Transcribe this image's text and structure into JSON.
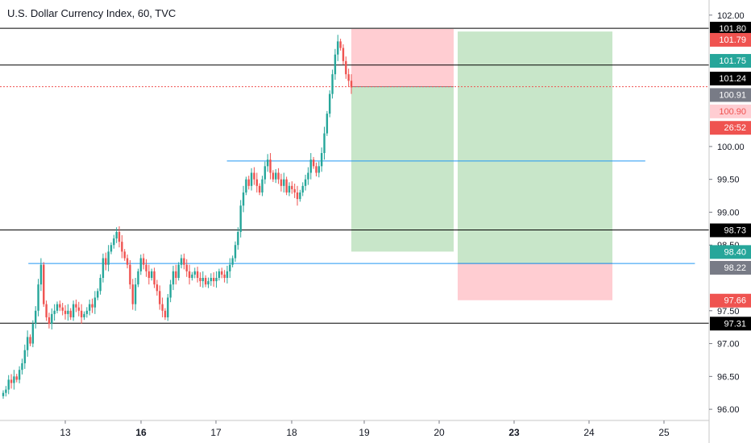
{
  "title": "U.S. Dollar Currency Index, 60, TVC",
  "colors": {
    "up": "#26a69a",
    "down": "#ef5350",
    "profit_zone": "#c8e6c9",
    "loss_zone": "#ffcdd2",
    "support_line": "#2196f3",
    "level_line": "#000000",
    "current_price_line": "#ef5350",
    "axis_text": "#131722"
  },
  "chart_data": {
    "type": "candlestick",
    "ylim": [
      95.83,
      102.23
    ],
    "y_ticks": [
      "102.00",
      "100.00",
      "99.50",
      "99.00",
      "98.50",
      "97.50",
      "97.00",
      "96.50",
      "96.00"
    ],
    "x_ticks": [
      {
        "label": "13",
        "bold": false
      },
      {
        "label": "16",
        "bold": true
      },
      {
        "label": "17",
        "bold": false
      },
      {
        "label": "18",
        "bold": false
      },
      {
        "label": "19",
        "bold": false
      },
      {
        "label": "20",
        "bold": false
      },
      {
        "label": "23",
        "bold": true
      },
      {
        "label": "24",
        "bold": false
      },
      {
        "label": "25",
        "bold": false
      }
    ],
    "horizontal_levels": [
      101.8,
      101.24,
      98.73,
      97.31
    ],
    "current_price": 100.91,
    "support_lines": [
      {
        "price": 98.22,
        "from": 0.04,
        "to": 0.98
      },
      {
        "price": 99.78,
        "from": 0.32,
        "to": 0.91
      }
    ],
    "positions": [
      {
        "type": "short",
        "entry": 100.91,
        "stop": 101.79,
        "target": 98.4
      },
      {
        "type": "long",
        "entry": 98.22,
        "stop": 97.66,
        "target": 101.75
      }
    ],
    "price_labels": [
      {
        "text": "101.80",
        "price": 101.8,
        "bg": "#000000",
        "fg": "#ffffff"
      },
      {
        "text": "101.79",
        "price": 101.63,
        "bg": "#ef5350",
        "fg": "#ffffff"
      },
      {
        "text": "101.75",
        "price": 101.31,
        "bg": "#26a69a",
        "fg": "#ffffff"
      },
      {
        "text": "101.24",
        "price": 101.04,
        "bg": "#000000",
        "fg": "#ffffff"
      },
      {
        "text": "100.91",
        "price": 100.79,
        "bg": "#787b86",
        "fg": "#ffffff"
      },
      {
        "text": "100.90",
        "price": 100.54,
        "bg": "#ffcdd2",
        "fg": "#ef5350"
      },
      {
        "text": "26:52",
        "price": 100.29,
        "bg": "#ef5350",
        "fg": "#ffffff"
      },
      {
        "text": "98.73",
        "price": 98.73,
        "bg": "#000000",
        "fg": "#ffffff"
      },
      {
        "text": "98.40",
        "price": 98.4,
        "bg": "#26a69a",
        "fg": "#ffffff"
      },
      {
        "text": "98.22",
        "price": 98.16,
        "bg": "#787b86",
        "fg": "#ffffff"
      },
      {
        "text": "97.66",
        "price": 97.66,
        "bg": "#ef5350",
        "fg": "#ffffff"
      },
      {
        "text": "97.31",
        "price": 97.31,
        "bg": "#000000",
        "fg": "#ffffff"
      }
    ],
    "candles_close": [
      96.25,
      96.3,
      96.45,
      96.4,
      96.5,
      96.45,
      96.6,
      96.7,
      96.9,
      97.1,
      97.0,
      97.3,
      97.5,
      97.9,
      98.2,
      97.6,
      97.4,
      97.3,
      97.45,
      97.5,
      97.6,
      97.55,
      97.5,
      97.45,
      97.5,
      97.4,
      97.6,
      97.55,
      97.5,
      97.4,
      97.45,
      97.5,
      97.6,
      97.55,
      97.7,
      97.8,
      98.0,
      98.3,
      98.2,
      98.4,
      98.5,
      98.6,
      98.7,
      98.55,
      98.4,
      98.3,
      98.2,
      97.9,
      97.6,
      97.9,
      98.1,
      98.3,
      98.2,
      98.1,
      98.0,
      98.1,
      97.9,
      97.8,
      97.6,
      97.5,
      97.4,
      97.7,
      97.9,
      98.1,
      98.0,
      98.2,
      98.3,
      98.2,
      98.1,
      98.0,
      98.05,
      98.1,
      98.0,
      97.95,
      98.0,
      97.9,
      97.95,
      98.0,
      97.95,
      98.0,
      98.1,
      98.05,
      98.0,
      98.1,
      98.2,
      98.3,
      98.5,
      98.7,
      99.1,
      99.3,
      99.5,
      99.4,
      99.6,
      99.5,
      99.4,
      99.3,
      99.5,
      99.7,
      99.8,
      99.6,
      99.5,
      99.6,
      99.5,
      99.4,
      99.5,
      99.3,
      99.4,
      99.35,
      99.3,
      99.2,
      99.3,
      99.4,
      99.5,
      99.6,
      99.8,
      99.7,
      99.6,
      99.7,
      99.9,
      100.2,
      100.5,
      100.8,
      101.1,
      101.4,
      101.6,
      101.5,
      101.3,
      101.1,
      101.0,
      100.9
    ]
  }
}
